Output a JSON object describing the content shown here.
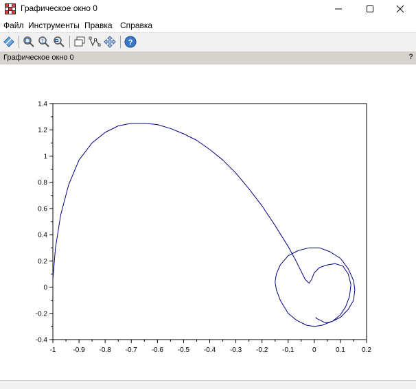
{
  "window": {
    "title": "Графическое окно 0",
    "icon": "scilab-graphic-window-icon",
    "controls": [
      "minimize-icon",
      "maximize-icon",
      "close-icon"
    ]
  },
  "menu": {
    "items": [
      "Файл",
      "Инструменты",
      "Правка",
      "Справка"
    ]
  },
  "toolbar": {
    "icons": [
      "rotate-icon",
      "zoom-in-icon",
      "zoom-original-icon",
      "zoom-out-icon",
      "axes-icon",
      "datatip-icon",
      "pan-icon",
      "help-icon"
    ]
  },
  "figure_bar": {
    "label": "Графическое окно 0",
    "help_glyph": "?"
  },
  "colors": {
    "curve": "#00007f",
    "toolbar_bg": "#f0f0f0",
    "figure_bar_bg": "#d6d3ce"
  },
  "chart_data": {
    "type": "line",
    "title": "",
    "xlabel": "",
    "ylabel": "",
    "xlim": [
      -1,
      0.2
    ],
    "ylim": [
      -0.4,
      1.4
    ],
    "grid": false,
    "xticks": [
      "-1",
      "-0.9",
      "-0.8",
      "-0.7",
      "-0.6",
      "-0.5",
      "-0.4",
      "-0.3",
      "-0.2",
      "-0.1",
      "0",
      "0.1",
      "0.2"
    ],
    "yticks": [
      "-0.4",
      "-0.2",
      "0",
      "0.2",
      "0.4",
      "0.6",
      "0.8",
      "1",
      "1.2",
      "1.4"
    ],
    "series": [
      {
        "x": [
          -1.0,
          -0.99,
          -0.97,
          -0.94,
          -0.9,
          -0.85,
          -0.8,
          -0.75,
          -0.7,
          -0.65,
          -0.6,
          -0.55,
          -0.5,
          -0.45,
          -0.4,
          -0.35,
          -0.3,
          -0.25,
          -0.2,
          -0.15,
          -0.1,
          -0.07,
          -0.05,
          -0.035,
          -0.02,
          -0.01,
          0.0,
          0.02,
          0.05,
          0.08,
          0.11,
          0.13,
          0.14,
          0.135,
          0.12,
          0.1,
          0.07,
          0.03,
          0.0,
          -0.03,
          -0.07,
          -0.1,
          -0.13,
          -0.145,
          -0.15,
          -0.145,
          -0.13,
          -0.1,
          -0.06,
          -0.02,
          0.02,
          0.06,
          0.1,
          0.13,
          0.15,
          0.155,
          0.15,
          0.13,
          0.1,
          0.07,
          0.05,
          0.04,
          0.03,
          0.02,
          0.01,
          0.005
        ],
        "y": [
          0.06,
          0.3,
          0.55,
          0.78,
          0.97,
          1.1,
          1.18,
          1.23,
          1.25,
          1.25,
          1.24,
          1.21,
          1.17,
          1.12,
          1.05,
          0.97,
          0.87,
          0.75,
          0.62,
          0.47,
          0.31,
          0.2,
          0.12,
          0.06,
          0.03,
          0.06,
          0.11,
          0.15,
          0.17,
          0.18,
          0.16,
          0.1,
          0.02,
          -0.07,
          -0.15,
          -0.21,
          -0.26,
          -0.29,
          -0.3,
          -0.29,
          -0.25,
          -0.2,
          -0.1,
          -0.02,
          0.04,
          0.1,
          0.17,
          0.24,
          0.28,
          0.3,
          0.3,
          0.27,
          0.22,
          0.14,
          0.05,
          -0.02,
          -0.1,
          -0.17,
          -0.23,
          -0.26,
          -0.27,
          -0.27,
          -0.26,
          -0.25,
          -0.24,
          -0.23
        ]
      }
    ]
  }
}
